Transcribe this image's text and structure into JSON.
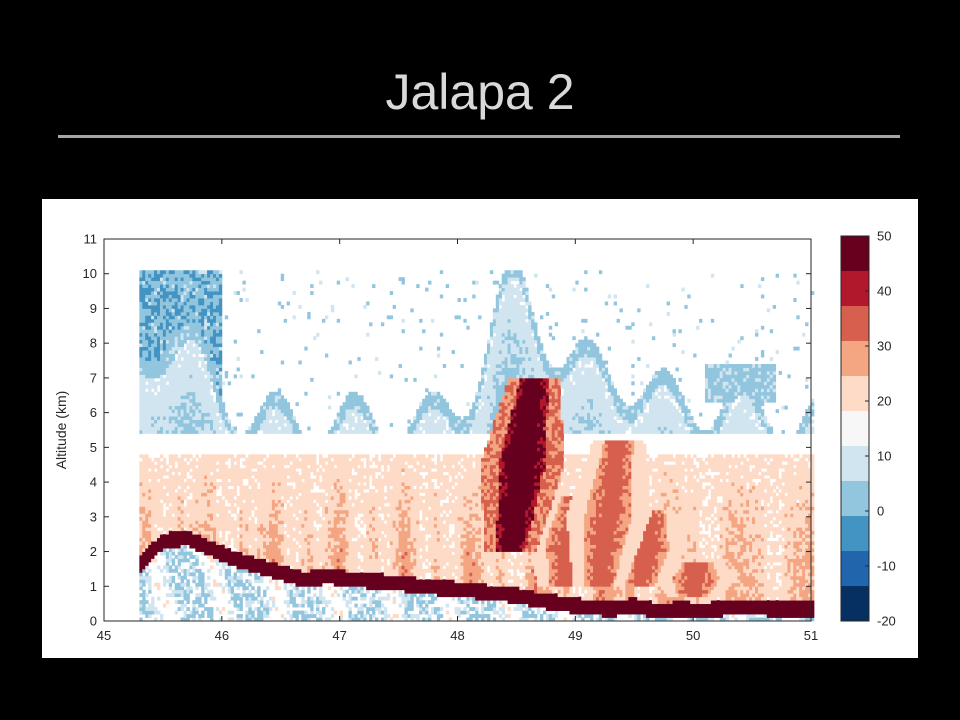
{
  "slide": {
    "title": "Jalapa 2"
  },
  "chart_data": {
    "type": "heatmap",
    "title": "",
    "xlabel": "",
    "ylabel": "Altitude (km)",
    "xlim": [
      45,
      51
    ],
    "ylim": [
      0,
      11
    ],
    "x_ticks": [
      45,
      46,
      47,
      48,
      49,
      50,
      51
    ],
    "y_ticks": [
      0,
      1,
      2,
      3,
      4,
      5,
      6,
      7,
      8,
      9,
      10,
      11
    ],
    "data_x_range": [
      45.3,
      51
    ],
    "data_top_altitude": 10.1,
    "melting_layer_altitude": 4.8,
    "bright_band": {
      "x": [
        45.3,
        45.4,
        45.5,
        45.7,
        45.9,
        46.1,
        46.3,
        46.5,
        46.7,
        46.9,
        47.1,
        47.3,
        47.5,
        47.7,
        47.9,
        48.1,
        48.3,
        48.5,
        48.7,
        48.9,
        49.1,
        49.3,
        49.5,
        49.7,
        49.9,
        50.1,
        50.3,
        50.5,
        50.7,
        51.0
      ],
      "altitude": [
        1.6,
        2.0,
        2.3,
        2.4,
        2.1,
        1.8,
        1.6,
        1.4,
        1.2,
        1.3,
        1.2,
        1.15,
        1.1,
        1.0,
        0.95,
        0.9,
        0.8,
        0.75,
        0.6,
        0.5,
        0.4,
        0.35,
        0.45,
        0.3,
        0.35,
        0.3,
        0.4,
        0.4,
        0.35,
        0.35
      ]
    },
    "convective_cells": [
      {
        "x": 48.45,
        "alt_bottom": 2.0,
        "alt_top": 7.0,
        "peak": 50
      },
      {
        "x": 49.2,
        "alt_bottom": 1.0,
        "alt_top": 5.2,
        "peak": 40
      },
      {
        "x": 48.9,
        "alt_bottom": 1.0,
        "alt_top": 3.6,
        "peak": 40
      },
      {
        "x": 49.55,
        "alt_bottom": 1.0,
        "alt_top": 3.2,
        "peak": 40
      },
      {
        "x": 50.0,
        "alt_bottom": 0.7,
        "alt_top": 1.7,
        "peak": 40
      }
    ],
    "colorbar": {
      "ticks": [
        -20,
        -10,
        0,
        10,
        20,
        30,
        40,
        50
      ],
      "range": [
        -20,
        50
      ],
      "colors": [
        "#053061",
        "#2166ac",
        "#4393c3",
        "#92c5de",
        "#d1e5f0",
        "#f7f7f7",
        "#fddbc7",
        "#f4a582",
        "#d6604d",
        "#b2182b",
        "#67001f"
      ]
    }
  }
}
